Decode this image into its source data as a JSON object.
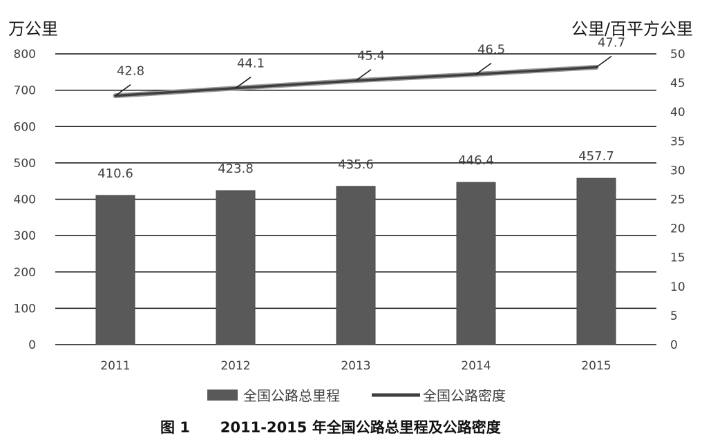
{
  "chart_data": {
    "type": "bar",
    "categories": [
      "2011",
      "2012",
      "2013",
      "2014",
      "2015"
    ],
    "series": [
      {
        "name": "全国公路总里程",
        "type": "bar",
        "axis": "left",
        "values": [
          410.6,
          423.8,
          435.6,
          446.4,
          457.7
        ],
        "labels": [
          "410.6",
          "423.8",
          "435.6",
          "446.4",
          "457.7"
        ]
      },
      {
        "name": "全国公路密度",
        "type": "line",
        "axis": "right",
        "values": [
          42.8,
          44.1,
          45.4,
          46.5,
          47.7
        ],
        "labels": [
          "42.8",
          "44.1",
          "45.4",
          "46.5",
          "47.7"
        ]
      }
    ],
    "y_left": {
      "unit": "万公里",
      "range": [
        0,
        800
      ],
      "ticks": [
        "0",
        "100",
        "200",
        "300",
        "400",
        "500",
        "600",
        "700",
        "800"
      ]
    },
    "y_right": {
      "unit": "公里/百平方公里",
      "range": [
        0,
        50
      ],
      "ticks": [
        "0",
        "5",
        "10",
        "15",
        "20",
        "25",
        "30",
        "35",
        "40",
        "45",
        "50"
      ]
    },
    "grid": true,
    "legend_position": "bottom",
    "caption": "图 1      2011-2015 年全国公路总里程及公路密度",
    "colors": {
      "bar": "#595959",
      "line": "#3f3f3f",
      "grid": "#111111",
      "text": "#404040"
    }
  }
}
